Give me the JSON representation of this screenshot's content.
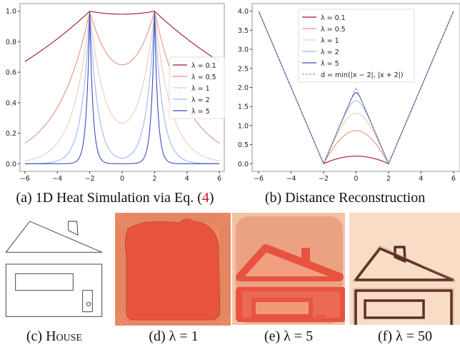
{
  "chart_data": [
    {
      "type": "line",
      "caption_prefix": "(a) 1D Heat Simulation via Eq. (",
      "caption_ref": "4",
      "caption_suffix": ")",
      "xlim": [
        -6.3,
        6.3
      ],
      "ylim": [
        -0.05,
        1.05
      ],
      "xticks": [
        "−6",
        "−4",
        "−2",
        "0",
        "2",
        "4",
        "6"
      ],
      "xtick_values": [
        -6,
        -4,
        -2,
        0,
        2,
        4,
        6
      ],
      "yticks": [
        "0.0",
        "0.2",
        "0.4",
        "0.6",
        "0.8",
        "1.0"
      ],
      "ytick_values": [
        0,
        0.2,
        0.4,
        0.6,
        0.8,
        1.0
      ],
      "grid": false,
      "legend_position": "center-right",
      "x": [
        -6,
        -5,
        -4,
        -3,
        -2,
        -1,
        0,
        1,
        2,
        3,
        4,
        5,
        6
      ],
      "series": [
        {
          "name": "λ = 0.1",
          "lambda": 0.1,
          "color": "#a50f35",
          "values": [
            0.67,
            0.741,
            0.819,
            0.905,
            1.0,
            0.985,
            0.98,
            0.985,
            1.0,
            0.905,
            0.819,
            0.741,
            0.67
          ]
        },
        {
          "name": "λ = 0.5",
          "lambda": 0.5,
          "color": "#e8927c",
          "values": [
            0.135,
            0.223,
            0.368,
            0.607,
            1.0,
            0.731,
            0.648,
            0.731,
            1.0,
            0.607,
            0.368,
            0.223,
            0.135
          ]
        },
        {
          "name": "λ = 1",
          "lambda": 1,
          "color": "#f3c9b8",
          "values": [
            0.018,
            0.05,
            0.135,
            0.368,
            1.0,
            0.41,
            0.266,
            0.41,
            1.0,
            0.368,
            0.135,
            0.05,
            0.018
          ]
        },
        {
          "name": "λ = 2",
          "lambda": 2,
          "color": "#9bb9f2",
          "values": [
            0.0,
            0.002,
            0.018,
            0.135,
            1.0,
            0.138,
            0.037,
            0.138,
            1.0,
            0.135,
            0.018,
            0.002,
            0.0
          ]
        },
        {
          "name": "λ = 5",
          "lambda": 5,
          "color": "#3b4cc0",
          "values": [
            0.0,
            0.0,
            0.0,
            0.007,
            1.0,
            0.007,
            0.0,
            0.007,
            1.0,
            0.007,
            0.0,
            0.0,
            0.0
          ]
        }
      ]
    },
    {
      "type": "line",
      "caption": "(b) Distance Reconstruction",
      "xlim": [
        -6.4,
        6.4
      ],
      "ylim": [
        -0.2,
        4.2
      ],
      "xticks": [
        "−6",
        "−4",
        "−2",
        "0",
        "2",
        "4",
        "6"
      ],
      "xtick_values": [
        -6,
        -4,
        -2,
        0,
        2,
        4,
        6
      ],
      "yticks": [
        "0.0",
        "0.5",
        "1.0",
        "1.5",
        "2.0",
        "2.5",
        "3.0",
        "3.5",
        "4.0"
      ],
      "ytick_values": [
        0,
        0.5,
        1,
        1.5,
        2,
        2.5,
        3,
        3.5,
        4
      ],
      "grid": false,
      "legend_position": "top-center",
      "x": [
        -6,
        -5,
        -4,
        -3,
        -2,
        -1,
        0,
        1,
        2,
        3,
        4,
        5,
        6
      ],
      "series": [
        {
          "name": "λ = 0.1",
          "lambda": 0.1,
          "color": "#a50f35",
          "values": [
            4,
            3,
            2,
            1,
            0,
            0.15,
            0.2,
            0.15,
            0,
            1,
            2,
            3,
            4
          ]
        },
        {
          "name": "λ = 0.5",
          "lambda": 0.5,
          "color": "#e8927c",
          "values": [
            4,
            3,
            2,
            1,
            0,
            0.63,
            0.87,
            0.63,
            0,
            1,
            2,
            3,
            4
          ]
        },
        {
          "name": "λ = 1",
          "lambda": 1,
          "color": "#f3c9b8",
          "values": [
            4,
            3,
            2,
            1,
            0,
            0.89,
            1.32,
            0.89,
            0,
            1,
            2,
            3,
            4
          ]
        },
        {
          "name": "λ = 2",
          "lambda": 2,
          "color": "#9bb9f2",
          "values": [
            4,
            3,
            2,
            1,
            0,
            0.99,
            1.65,
            0.99,
            0,
            1,
            2,
            3,
            4
          ]
        },
        {
          "name": "λ = 5",
          "lambda": 5,
          "color": "#3b4cc0",
          "values": [
            4,
            3,
            2,
            1,
            0,
            1.0,
            1.86,
            1.0,
            0,
            1,
            2,
            3,
            4
          ]
        },
        {
          "name": "d = min(|x − 2|, |x + 2|)",
          "dashed": true,
          "color": "#9a9a9a",
          "values": [
            4,
            3,
            2,
            1,
            0,
            1,
            2,
            1,
            0,
            1,
            2,
            3,
            4
          ]
        }
      ]
    }
  ],
  "panels": {
    "c": {
      "caption_prefix": "(c) ",
      "caption_name": "House"
    },
    "d": {
      "caption": "(d) λ = 1"
    },
    "e": {
      "caption": "(e) λ = 5"
    },
    "f": {
      "caption": "(f) λ = 50"
    }
  }
}
